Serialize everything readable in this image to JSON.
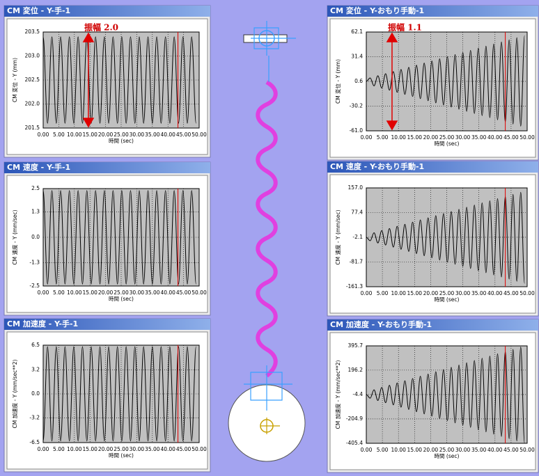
{
  "chart_data": [
    {
      "type": "line",
      "title": "CM 変位 - Y-手-1",
      "xlabel": "時間 (sec)",
      "ylabel": "CM 変位 - Y (mm)",
      "annotation": "振幅 2.0",
      "color": "#000000",
      "cursor_x": 43.2,
      "grid": true,
      "x": [
        0,
        1.4,
        2.8,
        4.2,
        5.6,
        7,
        8.4,
        9.8,
        11.2,
        12.6,
        14,
        15.4,
        16.8,
        18.2,
        19.6,
        21,
        22.4,
        23.8,
        25.2,
        26.6,
        28,
        29.4,
        30.8,
        32.2,
        33.6,
        35,
        36.4,
        37.8,
        39.2,
        40.6,
        42,
        43.4,
        44.8,
        46.2,
        47.6,
        49
      ],
      "values": [
        203.4,
        201.6,
        203.4,
        201.6,
        203.4,
        201.6,
        203.4,
        201.6,
        203.4,
        201.6,
        203.4,
        201.6,
        203.4,
        201.6,
        203.4,
        201.6,
        203.4,
        201.6,
        203.4,
        201.6,
        203.4,
        201.6,
        203.4,
        201.6,
        203.4,
        201.6,
        203.4,
        201.6,
        203.4,
        201.6,
        203.4,
        201.6,
        203.4,
        201.6,
        203.4,
        201.6
      ],
      "xlim": [
        0,
        50
      ],
      "xticks": [
        {
          "value": 0,
          "label": "0.00"
        },
        {
          "value": 5,
          "label": "5.00"
        },
        {
          "value": 10,
          "label": "10.00"
        },
        {
          "value": 15,
          "label": "15.00"
        },
        {
          "value": 20,
          "label": "20.00"
        },
        {
          "value": 25,
          "label": "25.00"
        },
        {
          "value": 30,
          "label": "30.00"
        },
        {
          "value": 35,
          "label": "35.00"
        },
        {
          "value": 40,
          "label": "40.00"
        },
        {
          "value": 45,
          "label": "45.00"
        },
        {
          "value": 50,
          "label": "50.00"
        }
      ],
      "ylim": [
        201.5,
        203.5
      ],
      "yticks": [
        201.5,
        {
          "value": 202,
          "label": "202.0"
        },
        202.5,
        {
          "value": 203,
          "label": "203.0"
        },
        203.5
      ]
    },
    {
      "type": "line",
      "title": "CM 速度 - Y-手-1",
      "xlabel": "時間 (sec)",
      "ylabel": "CM 速度 - Y (mm/sec)",
      "color": "#000000",
      "cursor_x": 43.2,
      "grid": true,
      "x": [
        0,
        1.4,
        2.8,
        4.2,
        5.6,
        7,
        8.4,
        9.8,
        11.2,
        12.6,
        14,
        15.4,
        16.8,
        18.2,
        19.6,
        21,
        22.4,
        23.8,
        25.2,
        26.6,
        28,
        29.4,
        30.8,
        32.2,
        33.6,
        35,
        36.4,
        37.8,
        39.2,
        40.6,
        42,
        43.4,
        44.8,
        46.2,
        47.6,
        49
      ],
      "values": [
        2.4,
        -2.4,
        2.4,
        -2.4,
        2.4,
        -2.4,
        2.4,
        -2.4,
        2.4,
        -2.4,
        2.4,
        -2.4,
        2.4,
        -2.4,
        2.4,
        -2.4,
        2.4,
        -2.4,
        2.4,
        -2.4,
        2.4,
        -2.4,
        2.4,
        -2.4,
        2.4,
        -2.4,
        2.4,
        -2.4,
        2.4,
        -2.4,
        2.4,
        -2.4,
        2.4,
        -2.4,
        2.4,
        -2.4
      ],
      "xlim": [
        0,
        50
      ],
      "xticks": [
        {
          "value": 0,
          "label": "0.00"
        },
        {
          "value": 5,
          "label": "5.00"
        },
        {
          "value": 10,
          "label": "10.00"
        },
        {
          "value": 15,
          "label": "15.00"
        },
        {
          "value": 20,
          "label": "20.00"
        },
        {
          "value": 25,
          "label": "25.00"
        },
        {
          "value": 30,
          "label": "30.00"
        },
        {
          "value": 35,
          "label": "35.00"
        },
        {
          "value": 40,
          "label": "40.00"
        },
        {
          "value": 45,
          "label": "45.00"
        },
        {
          "value": 50,
          "label": "50.00"
        }
      ],
      "ylim": [
        -2.5,
        2.5
      ],
      "yticks": [
        -2.5,
        -1.3,
        {
          "value": 0,
          "label": "0.0"
        },
        1.3,
        2.5
      ]
    },
    {
      "type": "line",
      "title": "CM 加速度 - Y-手-1",
      "xlabel": "時間 (sec)",
      "ylabel": "CM 加速度 - Y (mm/sec**2)",
      "color": "#000000",
      "cursor_x": 43.2,
      "grid": true,
      "x": [
        0,
        1.4,
        2.8,
        4.2,
        5.6,
        7,
        8.4,
        9.8,
        11.2,
        12.6,
        14,
        15.4,
        16.8,
        18.2,
        19.6,
        21,
        22.4,
        23.8,
        25.2,
        26.6,
        28,
        29.4,
        30.8,
        32.2,
        33.6,
        35,
        36.4,
        37.8,
        39.2,
        40.6,
        42,
        43.4,
        44.8,
        46.2,
        47.6,
        49
      ],
      "values": [
        -6.3,
        6.3,
        -6.3,
        6.3,
        -6.3,
        6.3,
        -6.3,
        6.3,
        -6.3,
        6.3,
        -6.3,
        6.3,
        -6.3,
        6.3,
        -6.3,
        6.3,
        -6.3,
        6.3,
        -6.3,
        6.3,
        -6.3,
        6.3,
        -6.3,
        6.3,
        -6.3,
        6.3,
        -6.3,
        6.3,
        -6.3,
        6.3,
        -6.3,
        6.3,
        -6.3,
        6.3,
        -6.3,
        6.3
      ],
      "xlim": [
        0,
        50
      ],
      "xticks": [
        {
          "value": 0,
          "label": "0.00"
        },
        {
          "value": 5,
          "label": "5.00"
        },
        {
          "value": 10,
          "label": "10.00"
        },
        {
          "value": 15,
          "label": "15.00"
        },
        {
          "value": 20,
          "label": "20.00"
        },
        {
          "value": 25,
          "label": "25.00"
        },
        {
          "value": 30,
          "label": "30.00"
        },
        {
          "value": 35,
          "label": "35.00"
        },
        {
          "value": 40,
          "label": "40.00"
        },
        {
          "value": 45,
          "label": "45.00"
        },
        {
          "value": 50,
          "label": "50.00"
        }
      ],
      "ylim": [
        -6.5,
        6.5
      ],
      "yticks": [
        -6.5,
        -3.2,
        {
          "value": 0,
          "label": "0.0"
        },
        3.2,
        6.5
      ]
    },
    {
      "type": "line",
      "title": "CM 変位 - Y-おもり手動-1",
      "xlabel": "時間 (sec)",
      "ylabel": "CM 変位 - Y (mm)",
      "annotation": "振幅 1.1",
      "color": "#000000",
      "cursor_x": 43.2,
      "grid": true,
      "x": [
        0,
        1.2,
        2.4,
        3.6,
        4.8,
        6,
        7.2,
        8.4,
        9.6,
        10.8,
        12,
        13.2,
        14.4,
        15.6,
        16.8,
        18,
        19.2,
        20.4,
        21.6,
        22.8,
        24,
        25.2,
        26.4,
        27.6,
        28.8,
        30,
        31.2,
        32.4,
        33.6,
        34.8,
        36,
        37.2,
        38.4,
        39.6,
        40.8,
        42,
        43.2,
        44.4,
        45.6,
        46.8,
        48,
        49.2
      ],
      "values": [
        0.6,
        4.9,
        -5.0,
        7.6,
        -7.7,
        10.2,
        -10.3,
        12.8,
        -13.0,
        15.5,
        -15.6,
        18.1,
        -18.2,
        20.8,
        -20.9,
        23.4,
        -23.5,
        26.0,
        -26.2,
        28.7,
        -28.8,
        31.3,
        -31.4,
        34.0,
        -34.1,
        36.6,
        -36.7,
        39.2,
        -39.4,
        41.9,
        -42.0,
        44.5,
        -44.6,
        47.2,
        -47.3,
        49.8,
        -49.9,
        52.4,
        -52.6,
        55.1,
        -55.2,
        57.7
      ],
      "xlim": [
        0,
        50
      ],
      "xticks": [
        {
          "value": 0,
          "label": "0.00"
        },
        {
          "value": 5,
          "label": "5.00"
        },
        {
          "value": 10,
          "label": "10.00"
        },
        {
          "value": 15,
          "label": "15.00"
        },
        {
          "value": 20,
          "label": "20.00"
        },
        {
          "value": 25,
          "label": "25.00"
        },
        {
          "value": 30,
          "label": "30.00"
        },
        {
          "value": 35,
          "label": "35.00"
        },
        {
          "value": 40,
          "label": "40.00"
        },
        {
          "value": 45,
          "label": "45.00"
        },
        {
          "value": 50,
          "label": "50.00"
        }
      ],
      "ylim": [
        -61.0,
        62.1
      ],
      "yticks": [
        {
          "value": -61,
          "label": "-61.0"
        },
        -30.2,
        0.6,
        31.4,
        62.1
      ]
    },
    {
      "type": "line",
      "title": "CM 速度 - Y-おもり手動-1",
      "xlabel": "時間 (sec)",
      "ylabel": "CM 速度 - Y (mm/sec)",
      "color": "#000000",
      "cursor_x": 43.2,
      "grid": true,
      "x": [
        0,
        1.2,
        2.4,
        3.6,
        4.8,
        6,
        7.2,
        8.4,
        9.6,
        10.8,
        12,
        13.2,
        14.4,
        15.6,
        16.8,
        18,
        19.2,
        20.4,
        21.6,
        22.8,
        24,
        25.2,
        26.4,
        27.6,
        28.8,
        30,
        31.2,
        32.4,
        33.6,
        34.8,
        36,
        37.2,
        38.4,
        39.6,
        40.8,
        42,
        43.2,
        44.4,
        45.6,
        46.8,
        48,
        49.2
      ],
      "values": [
        -2.1,
        -13.3,
        12.5,
        -20.3,
        19.5,
        -27.1,
        26.2,
        -33.8,
        33.3,
        -40.8,
        40.0,
        -47.6,
        46.8,
        -54.6,
        53.8,
        -61.4,
        60.6,
        -68.1,
        67.6,
        -75.2,
        74.3,
        -81.9,
        81.1,
        -88.9,
        88.1,
        -95.7,
        94.9,
        -102.5,
        101.9,
        -109.5,
        108.7,
        -116.2,
        115.4,
        -123.3,
        122.4,
        -130.0,
        129.2,
        -136.8,
        136.2,
        -143.8,
        143.0,
        -150.6
      ],
      "xlim": [
        0,
        50
      ],
      "xticks": [
        {
          "value": 0,
          "label": "0.00"
        },
        {
          "value": 5,
          "label": "5.00"
        },
        {
          "value": 10,
          "label": "10.00"
        },
        {
          "value": 15,
          "label": "15.00"
        },
        {
          "value": 20,
          "label": "20.00"
        },
        {
          "value": 25,
          "label": "25.00"
        },
        {
          "value": 30,
          "label": "30.00"
        },
        {
          "value": 35,
          "label": "35.00"
        },
        {
          "value": 40,
          "label": "40.00"
        },
        {
          "value": 45,
          "label": "45.00"
        },
        {
          "value": 50,
          "label": "50.00"
        }
      ],
      "ylim": [
        -161.3,
        157.0
      ],
      "yticks": [
        -161.3,
        -81.7,
        -2.1,
        77.4,
        {
          "value": 157,
          "label": "157.0"
        }
      ]
    },
    {
      "type": "line",
      "title": "CM 加速度 - Y-おもり手動-1",
      "xlabel": "時間 (sec)",
      "ylabel": "CM 加速度 - Y (mm/sec**2)",
      "color": "#000000",
      "cursor_x": 43.2,
      "grid": true,
      "x": [
        0,
        1.2,
        2.4,
        3.6,
        4.8,
        6,
        7.2,
        8.4,
        9.6,
        10.8,
        12,
        13.2,
        14.4,
        15.6,
        16.8,
        18,
        19.2,
        20.4,
        21.6,
        22.8,
        24,
        25.2,
        26.4,
        27.6,
        28.8,
        30,
        31.2,
        32.4,
        33.6,
        34.8,
        36,
        37.2,
        38.4,
        39.6,
        40.8,
        42,
        43.2,
        44.4,
        45.6,
        46.8,
        48,
        49.2
      ],
      "values": [
        -4.4,
        -34.5,
        34.8,
        -53.4,
        53.7,
        -71.6,
        71.9,
        -89.8,
        90.8,
        -108.7,
        109.0,
        -126.9,
        127.2,
        -145.8,
        146.1,
        -164.0,
        164.3,
        -182.2,
        183.2,
        -201.1,
        201.4,
        -219.3,
        219.6,
        -238.2,
        238.5,
        -256.4,
        256.7,
        -274.6,
        275.6,
        -293.5,
        293.8,
        -311.7,
        312.0,
        -330.6,
        330.9,
        -348.8,
        349.1,
        -367.0,
        368.0,
        -385.9,
        386.2,
        -404.1
      ],
      "xlim": [
        0,
        50
      ],
      "xticks": [
        {
          "value": 0,
          "label": "0.00"
        },
        {
          "value": 5,
          "label": "5.00"
        },
        {
          "value": 10,
          "label": "10.00"
        },
        {
          "value": 15,
          "label": "15.00"
        },
        {
          "value": 20,
          "label": "20.00"
        },
        {
          "value": 25,
          "label": "25.00"
        },
        {
          "value": 30,
          "label": "30.00"
        },
        {
          "value": 35,
          "label": "35.00"
        },
        {
          "value": 40,
          "label": "40.00"
        },
        {
          "value": 45,
          "label": "45.00"
        },
        {
          "value": 50,
          "label": "50.00"
        }
      ],
      "ylim": [
        -405.4,
        395.7
      ],
      "yticks": [
        -405.4,
        -204.9,
        -4.4,
        196.2,
        395.7
      ]
    }
  ]
}
